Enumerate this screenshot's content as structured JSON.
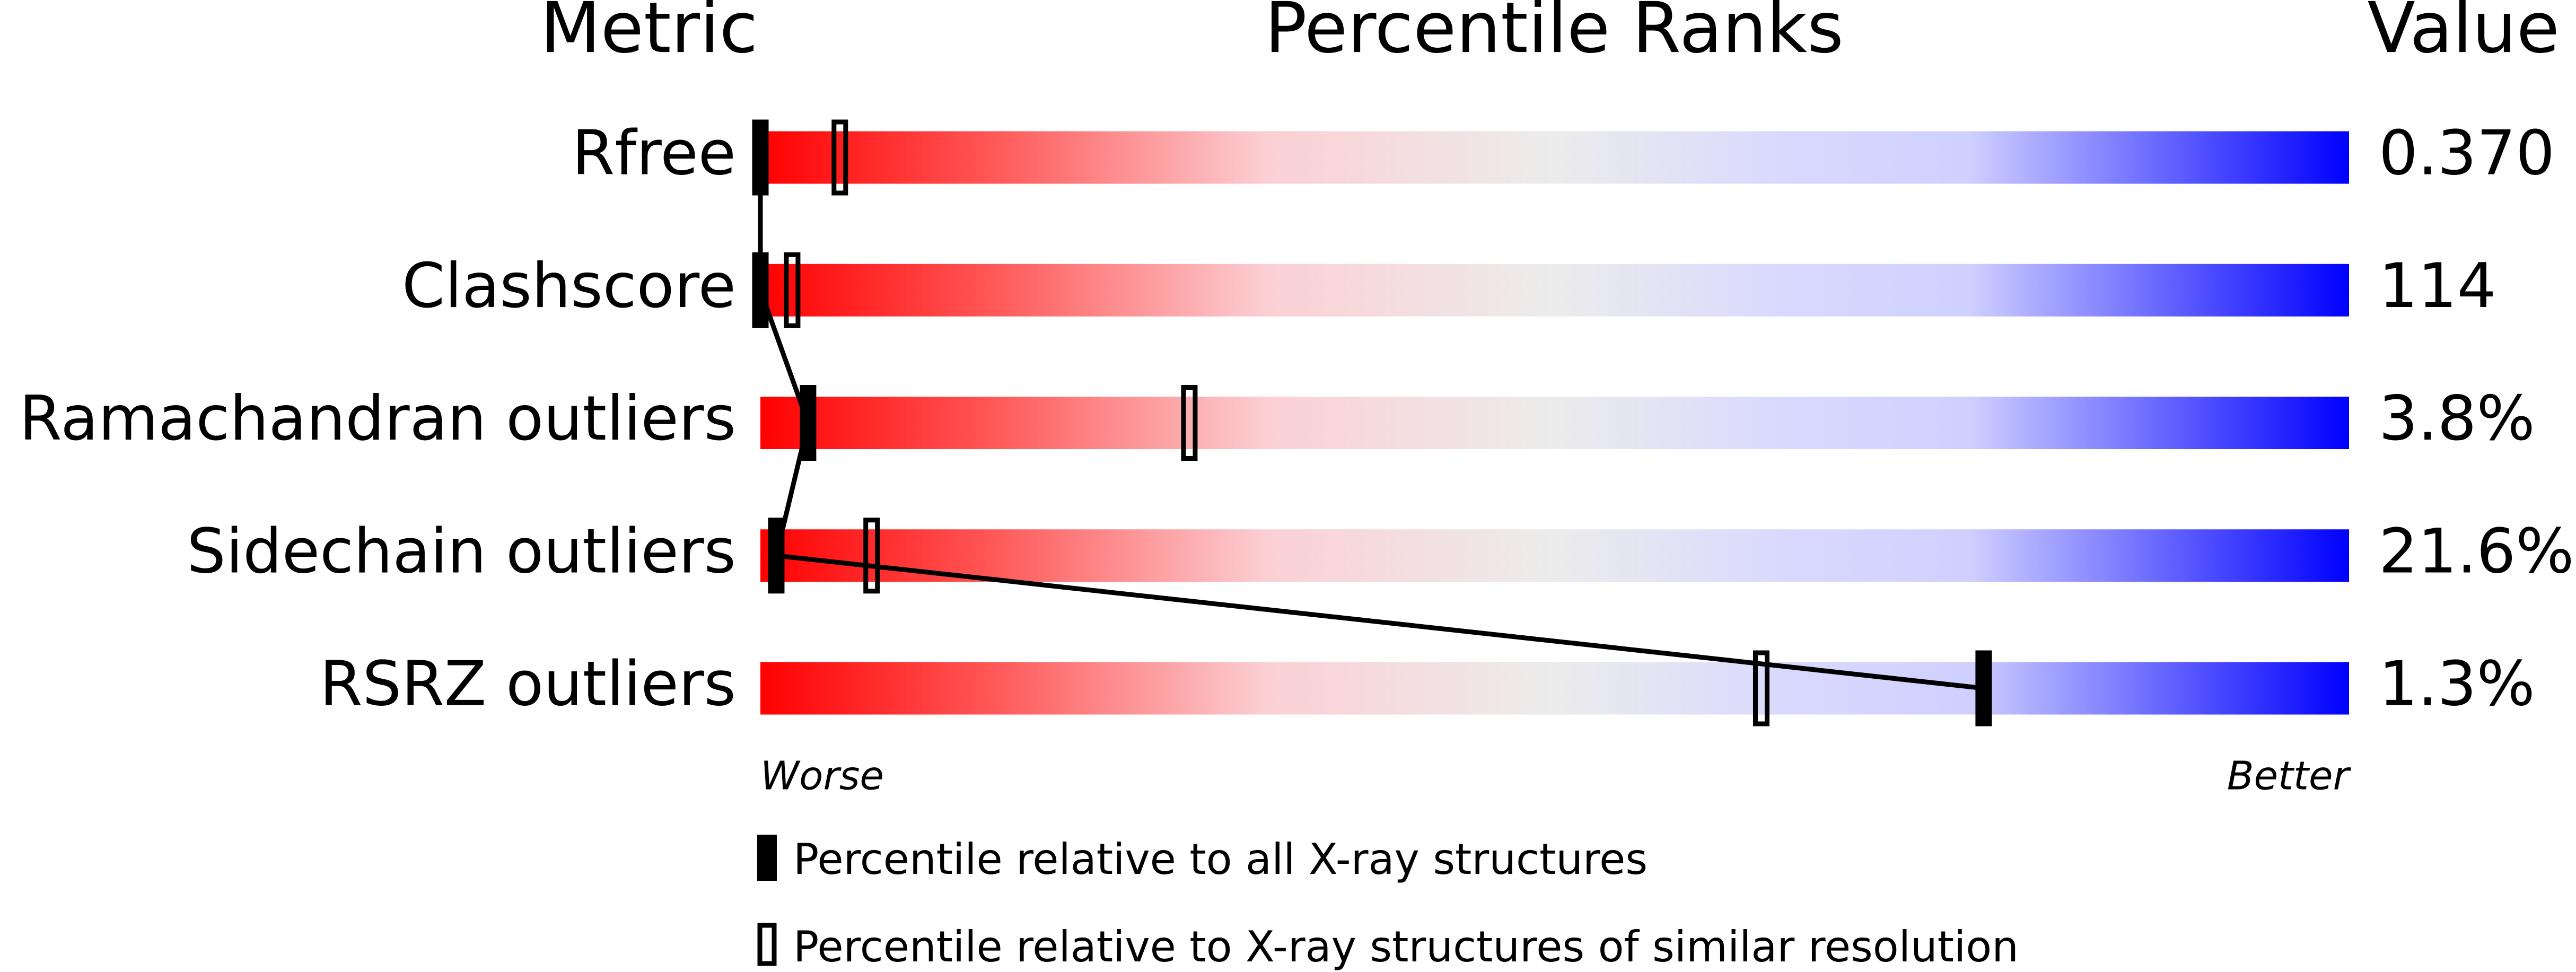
{
  "chart_data": {
    "type": "percentile_slider",
    "column_headers": [
      "Metric",
      "Percentile Ranks",
      "Value"
    ],
    "categories": [
      "Rfree",
      "Clashscore",
      "Ramachandran outliers",
      "Sidechain outliers",
      "RSRZ outliers"
    ],
    "value_texts": [
      "0.370",
      "114",
      "3.8%",
      "21.6%",
      "1.3%"
    ],
    "series": [
      {
        "name": "Percentile relative to all X-ray structures",
        "style": "filled",
        "color": "#000000",
        "values": [
          0,
          0,
          3,
          1,
          77
        ]
      },
      {
        "name": "Percentile relative to X-ray structures of similar resolution",
        "style": "hollow",
        "color": "#000000",
        "values": [
          5,
          2,
          27,
          7,
          63
        ]
      }
    ],
    "xlim": [
      0,
      100
    ],
    "worse_label": "Worse",
    "better_label": "Better"
  }
}
